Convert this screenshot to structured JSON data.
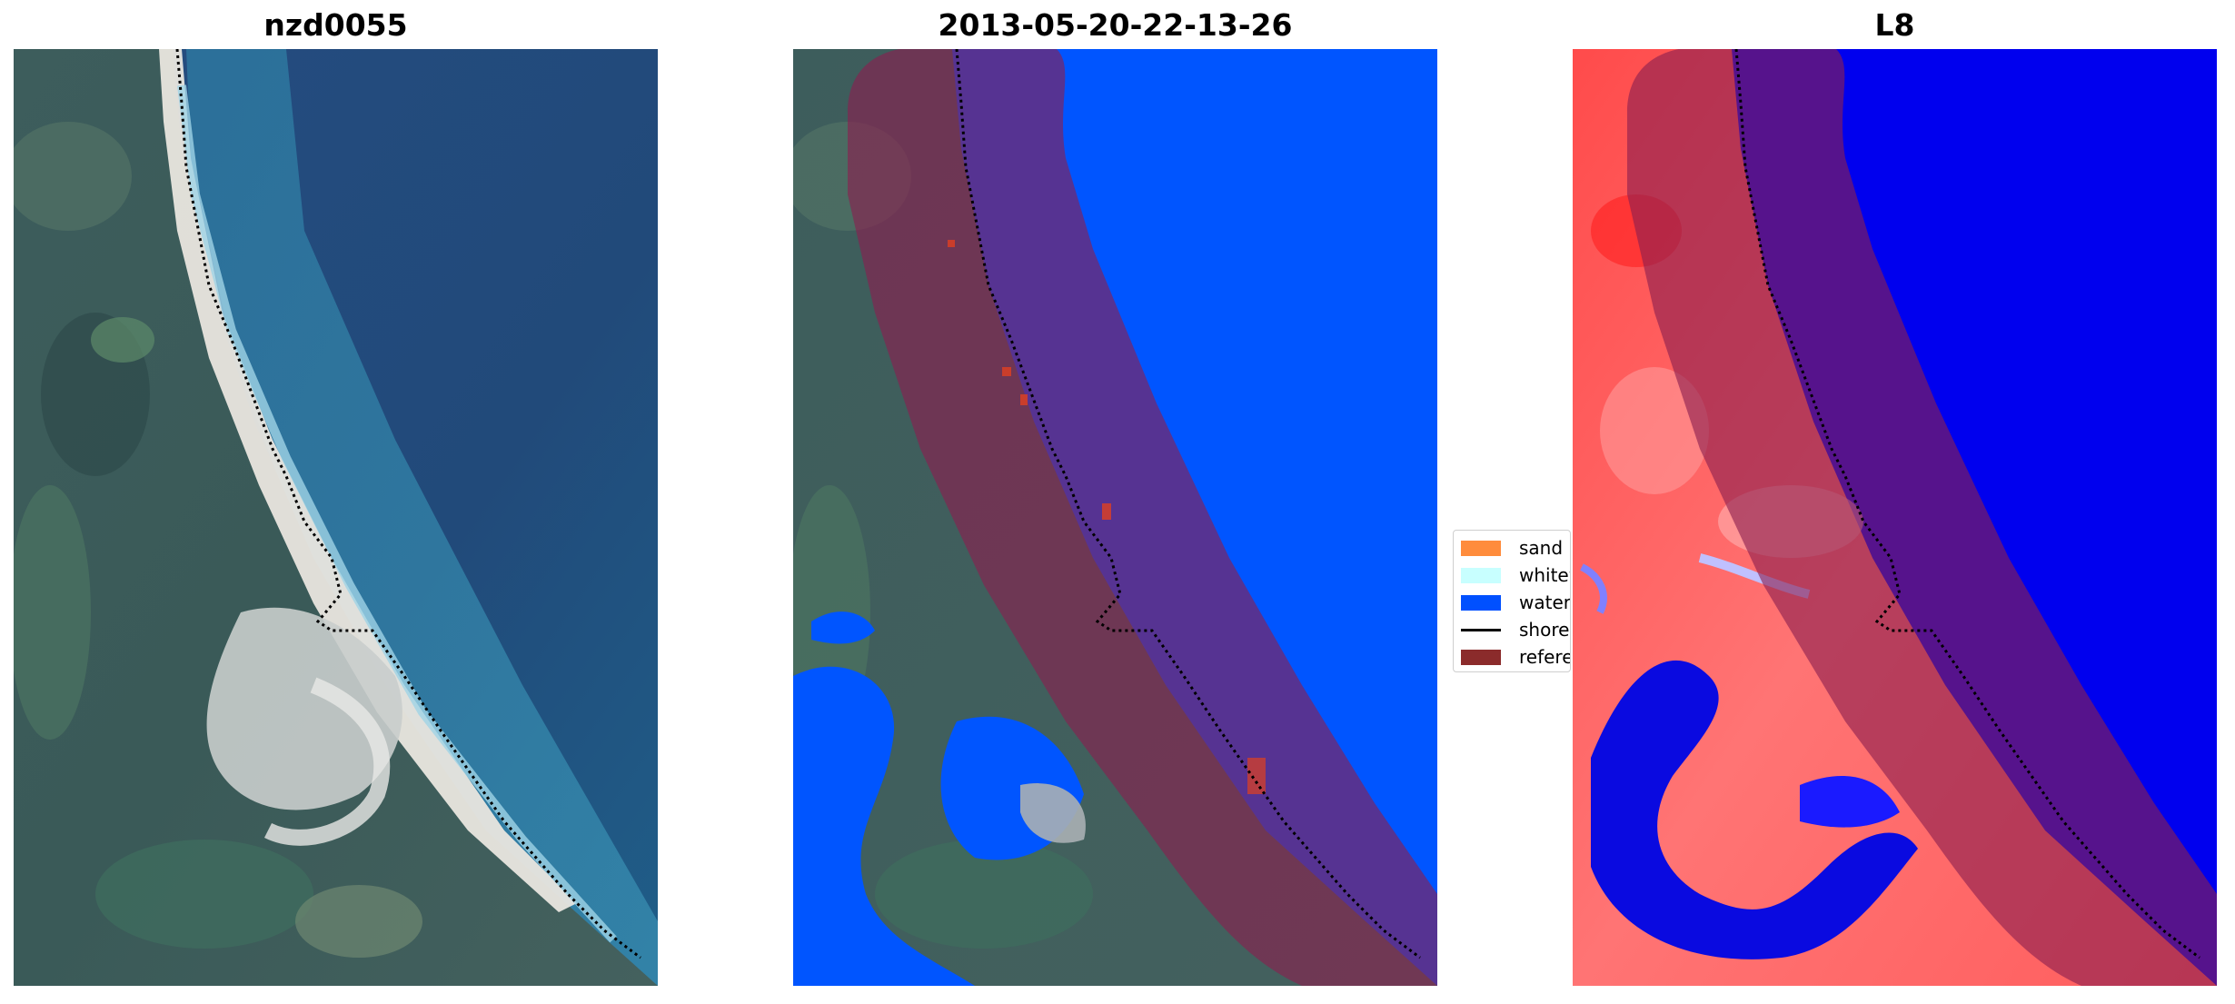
{
  "panels": [
    {
      "title": "nzd0055"
    },
    {
      "title": "2013-05-20-22-13-26"
    },
    {
      "title": "L8"
    }
  ],
  "legend": {
    "items": [
      {
        "label": "sand",
        "color": "#ff8c3c",
        "kind": "patch"
      },
      {
        "label": "whitewater",
        "color": "#c8ffff",
        "kind": "patch"
      },
      {
        "label": "water",
        "color": "#0050ff",
        "kind": "patch"
      },
      {
        "label": "shoreline",
        "color": "#000000",
        "kind": "line"
      },
      {
        "label": "reference",
        "color": "#8b2b2b",
        "kind": "patch"
      }
    ]
  },
  "colors": {
    "ocean": "#1f4a7c",
    "water_class": "#0055ff",
    "buffer_overlay": "#8a1f4f",
    "index_positive": "#ff2a2a",
    "index_negative": "#0000ee"
  }
}
